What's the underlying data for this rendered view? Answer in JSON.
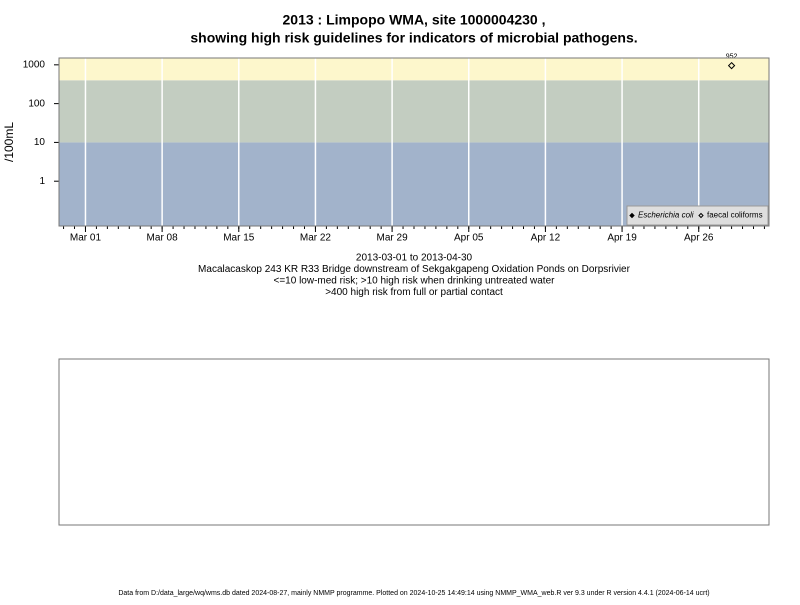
{
  "chart_data": {
    "type": "scatter",
    "title": "2013 : Limpopo WMA, site 1000004230 ,",
    "subtitle": "showing high risk guidelines for indicators of microbial pathogens.",
    "y_label": "/100mL",
    "log_y": true,
    "ylim": [
      0.07,
      1500
    ],
    "yticks": [
      1,
      10,
      100,
      1000
    ],
    "xlim": [
      "2013-02-26T14:00",
      "2013-05-02T10:00"
    ],
    "xticks": [
      {
        "value": "2013-03-01",
        "label": "Mar 01"
      },
      {
        "value": "2013-03-08",
        "label": "Mar 08"
      },
      {
        "value": "2013-03-15",
        "label": "Mar 15"
      },
      {
        "value": "2013-03-22",
        "label": "Mar 22"
      },
      {
        "value": "2013-03-29",
        "label": "Mar 29"
      },
      {
        "value": "2013-04-05",
        "label": "Apr 05"
      },
      {
        "value": "2013-04-12",
        "label": "Apr 12"
      },
      {
        "value": "2013-04-19",
        "label": "Apr 19"
      },
      {
        "value": "2013-04-26",
        "label": "Apr 26"
      }
    ],
    "grid": true,
    "bands": [
      {
        "upto": 10,
        "color": "#a2b3cb"
      },
      {
        "upto": 400,
        "color": "#c3cdc1"
      },
      {
        "upto": 1500,
        "color": "#fdf7cc"
      }
    ],
    "x": [
      "2013-04-29"
    ],
    "series": [
      {
        "name": "Escherichia coli",
        "color": "#000000",
        "filled": true,
        "values": [
          null
        ]
      },
      {
        "name": "faecal coliforms",
        "color": "#000000",
        "filled": false,
        "values": [
          952
        ]
      }
    ],
    "legend": "bottom-right",
    "notes": [
      "2013-03-01 to 2013-04-30",
      "Macalacaskop 243 KR R33 Bridge downstream of Sekgakgapeng Oxidation Ponds on Dorpsrivier",
      "<=10 low-med risk; >10 high risk when drinking untreated water",
      ">400 high risk from full or partial contact"
    ],
    "footer": "Data from D:/data_large/wq/wms.db dated 2024-08-27, mainly NMMP programme. Plotted on 2024-10-25 14:49:14 using NMMP_WMA_web.R ver 9.3 under R version 4.4.1 (2024-06-14 ucrt)"
  }
}
